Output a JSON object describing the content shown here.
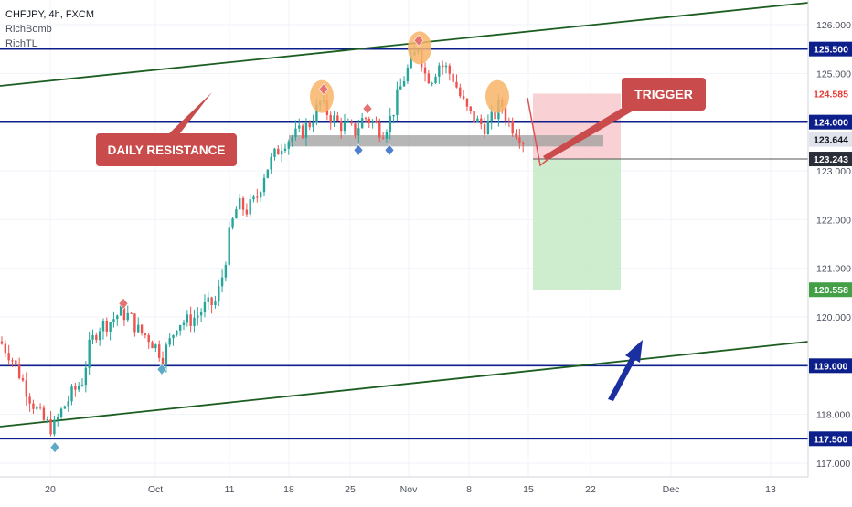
{
  "header": {
    "symbol": "CHFJPY, 4h, FXCM",
    "indicators": [
      "RichBomb",
      "RichTL"
    ]
  },
  "annotations": {
    "daily_resistance": "DAILY RESISTANCE",
    "trigger": "TRIGGER"
  },
  "colors": {
    "background": "#ffffff",
    "up_candle": "#26a69a",
    "down_candle": "#ef5350",
    "horizontal_level": "#0d1f8a",
    "trendline": "#1b5e20",
    "label_box": "#c94b4b",
    "stop_zone": "#f8c9cc",
    "target_zone": "#c8ebc9",
    "resistance_zone": "#9e9e9e",
    "top_marker": "#f7b467",
    "up_arrow": "#1a2fa0"
  },
  "chart_data": {
    "type": "candlestick",
    "x_tick_labels": [
      "20",
      "Oct",
      "11",
      "18",
      "25",
      "Nov",
      "8",
      "15",
      "22",
      "Dec",
      "13"
    ],
    "y_tick_labels": [
      "117.000",
      "118.000",
      "119.000",
      "120.000",
      "121.000",
      "122.000",
      "123.000",
      "124.000",
      "125.000",
      "126.000"
    ],
    "ylim": [
      116.8,
      126.4
    ],
    "price_labels": [
      {
        "value": "125.500",
        "role": "level"
      },
      {
        "value": "124.585",
        "role": "stop"
      },
      {
        "value": "124.000",
        "role": "level"
      },
      {
        "value": "123.644",
        "role": "current"
      },
      {
        "value": "123.243",
        "role": "entry"
      },
      {
        "value": "120.558",
        "role": "target"
      },
      {
        "value": "119.000",
        "role": "level"
      },
      {
        "value": "117.500",
        "role": "level"
      }
    ],
    "horizontal_levels": [
      125.5,
      124.0,
      119.0,
      117.5
    ],
    "resistance_zone": [
      123.5,
      123.73
    ],
    "trade": {
      "entry": 123.243,
      "stop": 124.585,
      "target": 120.558
    },
    "current_price": 123.644,
    "price_path": [
      [
        0,
        119.5
      ],
      [
        12,
        119.2
      ],
      [
        22,
        118.8
      ],
      [
        34,
        118.3
      ],
      [
        46,
        117.9
      ],
      [
        58,
        117.7
      ],
      [
        68,
        118.1
      ],
      [
        78,
        118.4
      ],
      [
        90,
        118.7
      ],
      [
        98,
        119.4
      ],
      [
        108,
        119.8
      ],
      [
        120,
        119.9
      ],
      [
        132,
        120.1
      ],
      [
        142,
        120.0
      ],
      [
        152,
        119.7
      ],
      [
        162,
        119.6
      ],
      [
        170,
        119.4
      ],
      [
        178,
        119.2
      ],
      [
        186,
        119.5
      ],
      [
        194,
        119.9
      ],
      [
        204,
        119.9
      ],
      [
        214,
        120.0
      ],
      [
        224,
        120.2
      ],
      [
        236,
        120.3
      ],
      [
        244,
        120.9
      ],
      [
        252,
        121.8
      ],
      [
        260,
        122.3
      ],
      [
        270,
        122.2
      ],
      [
        280,
        122.4
      ],
      [
        290,
        123.0
      ],
      [
        300,
        123.3
      ],
      [
        310,
        123.6
      ],
      [
        320,
        123.7
      ],
      [
        330,
        123.8
      ],
      [
        340,
        124.0
      ],
      [
        350,
        124.4
      ],
      [
        358,
        124.2
      ],
      [
        368,
        124.0
      ],
      [
        378,
        123.9
      ],
      [
        388,
        123.8
      ],
      [
        398,
        124.1
      ],
      [
        408,
        124.0
      ],
      [
        418,
        123.8
      ],
      [
        428,
        124.1
      ],
      [
        436,
        124.6
      ],
      [
        444,
        125.0
      ],
      [
        452,
        125.3
      ],
      [
        458,
        125.6
      ],
      [
        464,
        125.0
      ],
      [
        472,
        124.9
      ],
      [
        480,
        125.2
      ],
      [
        488,
        125.1
      ],
      [
        496,
        124.9
      ],
      [
        504,
        124.5
      ],
      [
        512,
        124.2
      ],
      [
        522,
        124.0
      ],
      [
        532,
        123.9
      ],
      [
        540,
        124.1
      ],
      [
        548,
        124.4
      ],
      [
        556,
        124.0
      ],
      [
        566,
        123.8
      ],
      [
        574,
        123.6
      ]
    ],
    "candle_count": 150,
    "markers": {
      "red_diamonds": [
        [
          135,
          120.2
        ],
        [
          354,
          124.6
        ],
        [
          402,
          124.2
        ],
        [
          458,
          125.6
        ]
      ],
      "blue_diamonds": [
        [
          60,
          117.4
        ],
        [
          177,
          119.0
        ],
        [
          392,
          123.5
        ],
        [
          426,
          123.5
        ]
      ],
      "orange_circles": [
        [
          352,
          124.6
        ],
        [
          459,
          125.6
        ],
        [
          544,
          124.6
        ]
      ]
    }
  }
}
